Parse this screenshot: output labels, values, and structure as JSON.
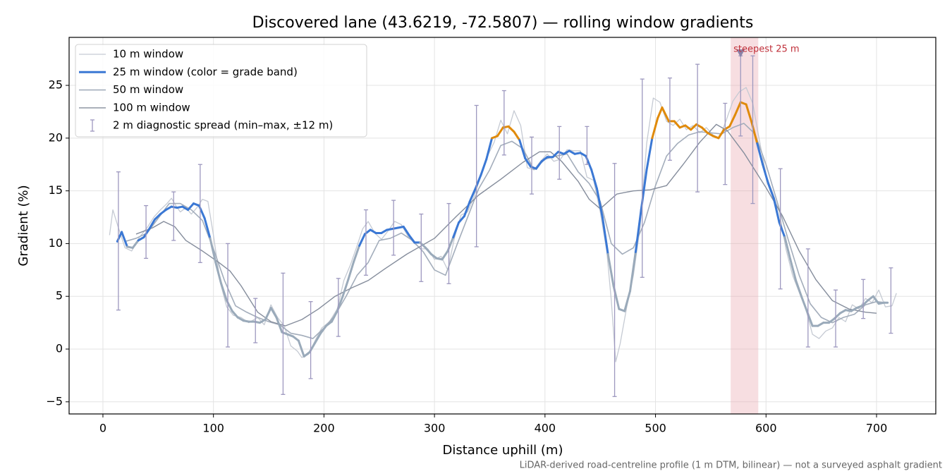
{
  "chart_data": {
    "type": "line",
    "title": "Discovered lane (43.6219, -72.5807) — rolling window gradients",
    "xlabel": "Distance uphill (m)",
    "ylabel": "Gradient (%)",
    "footnote": "LiDAR-derived road-centreline profile (1 m DTM, bilinear) — not a surveyed asphalt gradient",
    "xlim": [
      -30.6,
      753.6
    ],
    "ylim": [
      -6.15,
      29.55
    ],
    "xticks": [
      0,
      100,
      200,
      300,
      400,
      500,
      600,
      700
    ],
    "yticks": [
      {
        "value": -5,
        "label": "−5"
      },
      0,
      5,
      10,
      15,
      20,
      25
    ],
    "grid": true,
    "legend": "upper left",
    "series": [
      {
        "name": "10 m window",
        "color": "#c5cad3",
        "x": [
          6,
          9,
          14,
          20,
          26,
          33,
          40,
          46,
          52,
          58,
          62,
          66,
          70,
          75,
          80,
          85,
          90,
          95,
          100,
          106,
          112,
          118,
          125,
          132,
          140,
          146,
          152,
          158,
          164,
          170,
          176,
          180,
          186,
          192,
          198,
          205,
          212,
          218,
          224,
          230,
          235,
          240,
          246,
          252,
          258,
          264,
          270,
          276,
          282,
          288,
          294,
          300,
          306,
          312,
          318,
          324,
          330,
          336,
          342,
          348,
          354,
          360,
          366,
          372,
          378,
          384,
          390,
          396,
          402,
          408,
          414,
          420,
          426,
          432,
          438,
          444,
          450,
          456,
          460,
          464,
          468,
          474,
          480,
          486,
          492,
          498,
          504,
          510,
          516,
          522,
          528,
          534,
          540,
          546,
          552,
          558,
          564,
          570,
          576,
          582,
          588,
          594,
          600,
          606,
          612,
          618,
          624,
          630,
          636,
          642,
          648,
          654,
          660,
          666,
          672,
          678,
          684,
          690,
          696,
          702,
          708,
          714,
          718
        ],
        "values": [
          10.8,
          13.2,
          11.5,
          9.6,
          9.3,
          10.6,
          11.5,
          12.5,
          13.2,
          13.8,
          14.3,
          13.6,
          13.0,
          13.4,
          12.8,
          13.4,
          14.2,
          14.0,
          10.8,
          6.4,
          4.0,
          3.2,
          3.0,
          2.5,
          3.0,
          2.3,
          4.2,
          3.0,
          2.2,
          0.3,
          -0.2,
          -0.8,
          -0.5,
          0.8,
          2.0,
          2.6,
          3.8,
          6.5,
          8.0,
          9.8,
          11.4,
          12.1,
          11.0,
          10.4,
          11.2,
          12.1,
          11.8,
          10.7,
          10.0,
          9.5,
          9.5,
          8.5,
          8.8,
          7.5,
          10.5,
          12.7,
          13.0,
          14.5,
          16.5,
          18.3,
          19.6,
          21.7,
          20.4,
          22.6,
          21.2,
          17.2,
          17.0,
          17.8,
          18.5,
          17.8,
          18.0,
          18.9,
          18.8,
          18.8,
          16.3,
          16.0,
          13.0,
          9.2,
          4.6,
          -1.2,
          0.5,
          4.0,
          7.0,
          11.5,
          19.5,
          23.8,
          23.4,
          21.6,
          21.2,
          21.8,
          20.8,
          21.2,
          20.5,
          21.0,
          20.3,
          20.0,
          21.7,
          23.5,
          24.4,
          24.8,
          23.3,
          19.8,
          16.5,
          14.8,
          13.0,
          9.5,
          7.0,
          5.4,
          3.8,
          1.4,
          1.0,
          1.7,
          2.0,
          3.0,
          2.6,
          4.2,
          3.8,
          4.8,
          4.4,
          5.6,
          4.0,
          4.1,
          5.3
        ]
      },
      {
        "name": "25 m window (color = grade band)",
        "color": "#3b78d4",
        "band_thresholds": [
          10,
          20
        ],
        "band_colors": [
          "#9aaaba",
          "#3b78d4",
          "#e08a0a"
        ],
        "x": [
          13,
          17,
          22,
          27,
          32,
          37,
          42,
          47,
          52,
          57,
          62,
          67,
          72,
          77,
          82,
          87,
          92,
          97,
          102,
          107,
          112,
          117,
          122,
          127,
          132,
          137,
          142,
          147,
          152,
          157,
          162,
          167,
          172,
          177,
          182,
          187,
          192,
          197,
          202,
          207,
          212,
          217,
          222,
          227,
          232,
          237,
          242,
          247,
          252,
          257,
          262,
          267,
          272,
          277,
          282,
          287,
          292,
          297,
          302,
          307,
          312,
          317,
          322,
          327,
          332,
          337,
          342,
          347,
          352,
          357,
          362,
          367,
          372,
          377,
          382,
          387,
          392,
          397,
          402,
          407,
          412,
          417,
          422,
          427,
          432,
          437,
          442,
          447,
          452,
          457,
          462,
          467,
          472,
          477,
          482,
          487,
          492,
          497,
          502,
          506,
          512,
          517,
          522,
          527,
          532,
          537,
          542,
          547,
          552,
          557,
          562,
          567,
          572,
          577,
          582,
          587,
          592,
          597,
          602,
          607,
          612,
          617,
          622,
          627,
          632,
          637,
          642,
          647,
          652,
          657,
          662,
          667,
          672,
          677,
          682,
          687,
          692,
          697,
          702,
          707,
          710
        ],
        "values": [
          10.2,
          11.1,
          9.7,
          9.6,
          10.3,
          10.6,
          11.4,
          12.3,
          12.8,
          13.2,
          13.5,
          13.4,
          13.5,
          13.2,
          13.8,
          13.6,
          12.4,
          10.5,
          8.2,
          6.2,
          4.6,
          3.6,
          3.0,
          2.7,
          2.6,
          2.6,
          2.5,
          2.8,
          3.9,
          3.0,
          1.6,
          1.4,
          1.2,
          0.8,
          -0.7,
          -0.3,
          0.6,
          1.5,
          2.2,
          2.6,
          3.6,
          5.0,
          6.6,
          8.3,
          9.8,
          10.9,
          11.3,
          11.0,
          11.0,
          11.3,
          11.4,
          11.5,
          11.6,
          10.8,
          10.1,
          10.1,
          9.6,
          9.0,
          8.6,
          8.5,
          9.3,
          10.6,
          12.0,
          12.6,
          14.0,
          15.2,
          16.5,
          18.0,
          20.0,
          20.2,
          21.0,
          21.1,
          20.6,
          19.8,
          18.1,
          17.3,
          17.1,
          17.8,
          18.2,
          18.2,
          18.7,
          18.5,
          18.8,
          18.5,
          18.6,
          18.3,
          17.0,
          15.2,
          12.5,
          9.0,
          6.0,
          3.8,
          3.6,
          5.5,
          9.2,
          13.2,
          17.0,
          20.0,
          21.9,
          22.9,
          21.6,
          21.6,
          21.0,
          21.2,
          20.8,
          21.3,
          21.0,
          20.5,
          20.2,
          20.0,
          20.8,
          21.1,
          22.2,
          23.4,
          23.2,
          21.5,
          19.5,
          17.5,
          15.7,
          14.3,
          12.0,
          10.6,
          8.5,
          6.5,
          5.0,
          3.6,
          2.2,
          2.2,
          2.5,
          2.5,
          2.9,
          3.4,
          3.7,
          3.6,
          3.9,
          4.1,
          4.6,
          5.0,
          4.3,
          4.4,
          4.4
        ]
      },
      {
        "name": "50 m window",
        "color": "#a3adbb",
        "x": [
          20,
          30,
          40,
          50,
          60,
          70,
          80,
          90,
          100,
          110,
          120,
          130,
          140,
          150,
          160,
          170,
          180,
          190,
          200,
          210,
          220,
          230,
          240,
          250,
          260,
          270,
          280,
          290,
          300,
          310,
          320,
          330,
          340,
          350,
          360,
          370,
          380,
          390,
          400,
          410,
          420,
          430,
          440,
          450,
          460,
          470,
          480,
          490,
          500,
          510,
          520,
          530,
          540,
          550,
          560,
          570,
          580,
          590,
          600,
          610,
          620,
          630,
          640,
          650,
          660,
          670,
          680,
          690,
          700,
          708
        ],
        "values": [
          10.2,
          10.5,
          11.0,
          12.4,
          13.8,
          13.8,
          13.2,
          12.2,
          9.5,
          6.5,
          4.1,
          3.5,
          3.0,
          2.6,
          2.3,
          1.5,
          1.3,
          1.0,
          2.0,
          3.2,
          5.0,
          7.0,
          8.2,
          10.3,
          10.5,
          11.0,
          10.3,
          9.2,
          7.5,
          7.0,
          9.8,
          12.5,
          15.2,
          17.0,
          19.3,
          19.7,
          19.0,
          17.0,
          18.0,
          18.3,
          18.5,
          16.8,
          15.7,
          14.0,
          10.0,
          9.0,
          9.6,
          12.0,
          15.5,
          18.3,
          19.5,
          20.3,
          20.6,
          20.5,
          20.4,
          21.0,
          21.4,
          20.4,
          17.5,
          14.0,
          10.4,
          7.0,
          4.3,
          3.0,
          2.5,
          3.0,
          3.3,
          4.2,
          4.5,
          4.4
        ]
      },
      {
        "name": "100 m window",
        "color": "#858d9c",
        "x": [
          30,
          45,
          55,
          65,
          75,
          90,
          105,
          115,
          125,
          140,
          152,
          165,
          180,
          195,
          210,
          225,
          240,
          255,
          275,
          300,
          320,
          340,
          360,
          380,
          395,
          405,
          415,
          430,
          440,
          450,
          465,
          480,
          495,
          510,
          525,
          540,
          555,
          565,
          580,
          600,
          615,
          630,
          645,
          660,
          675,
          690,
          700
        ],
        "values": [
          10.9,
          11.5,
          12.1,
          11.6,
          10.3,
          9.3,
          8.2,
          7.4,
          6.0,
          3.5,
          2.6,
          2.2,
          2.8,
          3.8,
          5.0,
          5.8,
          6.5,
          7.6,
          9.0,
          10.5,
          12.6,
          14.6,
          16.1,
          17.7,
          18.7,
          18.7,
          17.8,
          15.9,
          14.2,
          13.3,
          14.7,
          15.0,
          15.1,
          15.5,
          17.5,
          19.6,
          21.3,
          20.7,
          18.6,
          15.3,
          12.6,
          9.3,
          6.6,
          4.6,
          3.8,
          3.5,
          3.4
        ]
      }
    ],
    "errorbars": {
      "name": "2 m diagnostic spread (min–max, ±12 m)",
      "color": "#9d98bf",
      "x": [
        14,
        39,
        64,
        88,
        113,
        138,
        163,
        188,
        213,
        238,
        263,
        288,
        313,
        338,
        363,
        388,
        413,
        438,
        463,
        488,
        513,
        538,
        563,
        577,
        588,
        613,
        638,
        663,
        688,
        713
      ],
      "low": [
        3.7,
        8.6,
        10.3,
        8.2,
        0.2,
        0.6,
        -4.3,
        -2.8,
        1.2,
        7.0,
        8.9,
        6.4,
        6.2,
        9.7,
        18.4,
        14.7,
        16.1,
        17.5,
        -4.5,
        6.8,
        17.9,
        14.9,
        15.6,
        20.2,
        13.8,
        5.7,
        0.2,
        0.2,
        2.9,
        1.5
      ],
      "high": [
        16.8,
        13.6,
        14.9,
        17.5,
        10.0,
        4.8,
        7.2,
        4.5,
        6.7,
        13.2,
        14.1,
        12.8,
        13.8,
        23.1,
        24.5,
        20.1,
        21.1,
        21.1,
        17.6,
        25.6,
        25.7,
        27.0,
        23.3,
        27.8,
        27.8,
        17.1,
        9.5,
        5.6,
        6.6,
        7.7
      ]
    },
    "highlight": {
      "label": "steepest 25 m",
      "x": [
        568,
        593
      ],
      "color": "#e8a0a8",
      "label_color": "#c0303a",
      "marker_x": 577,
      "marker_y": 28
    }
  }
}
